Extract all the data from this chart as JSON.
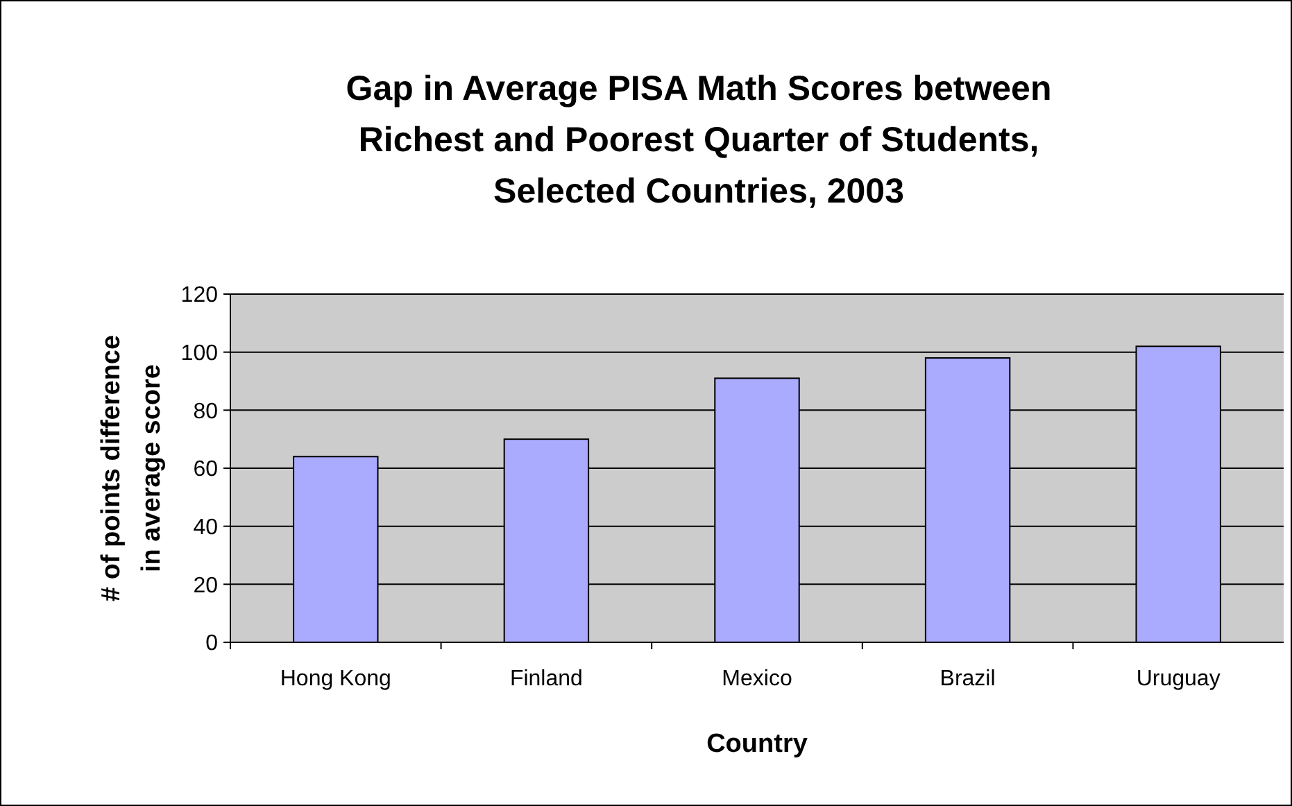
{
  "chart_data": {
    "type": "bar",
    "title": "Gap in Average PISA Math Scores between Richest and Poorest Quarter of Students, Selected Countries, 2003",
    "xlabel": "Country",
    "ylabel": "# of points difference in average score",
    "categories": [
      "Hong Kong",
      "Finland",
      "Mexico",
      "Brazil",
      "Uruguay"
    ],
    "values": [
      64,
      70,
      91,
      98,
      102
    ],
    "color": "#aaaaff",
    "ylim": [
      0,
      120
    ],
    "yticks": [
      0,
      20,
      40,
      60,
      80,
      100,
      120
    ],
    "grid": "y"
  }
}
